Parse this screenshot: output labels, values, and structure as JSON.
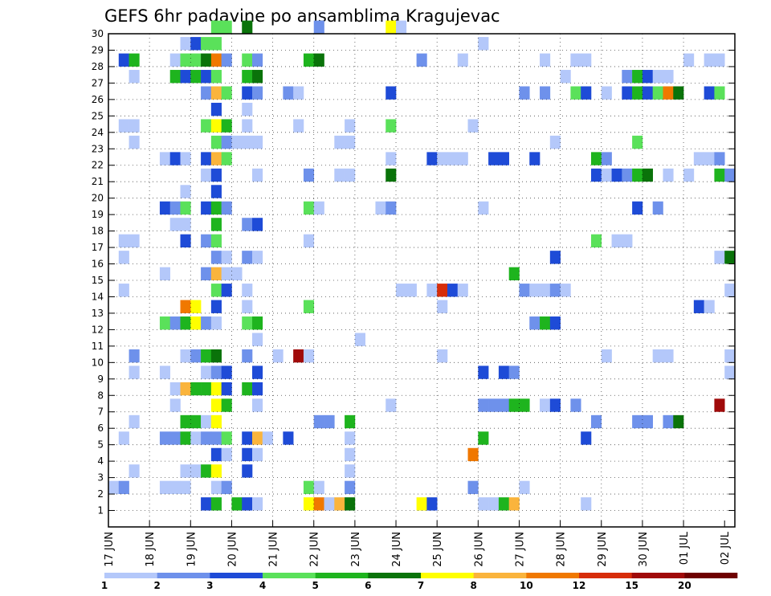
{
  "chart_data": {
    "type": "heatmap",
    "title": "GEFS 6hr padavine po ansamblima Kragujevac",
    "y_tick_labels": [
      "1",
      "2",
      "3",
      "4",
      "5",
      "6",
      "7",
      "8",
      "9",
      "10",
      "11",
      "12",
      "13",
      "14",
      "15",
      "16",
      "17",
      "18",
      "19",
      "20",
      "21",
      "22",
      "23",
      "24",
      "25",
      "26",
      "27",
      "28",
      "29",
      "30"
    ],
    "x_tick_labels": [
      "17 JUN",
      "18 JUN",
      "19 JUN",
      "20 JUN",
      "21 JUN",
      "22 JUN",
      "23 JUN",
      "24 JUN",
      "25 JUN",
      "26 JUN",
      "27 JUN",
      "28 JUN",
      "29 JUN",
      "30 JUN",
      "01 JUL",
      "02 JUL"
    ],
    "steps_per_day": 4,
    "n_steps": 61,
    "members": 30,
    "colorbar": {
      "labels": [
        "1",
        "2",
        "3",
        "4",
        "5",
        "6",
        "7",
        "8",
        "10",
        "12",
        "15",
        "20"
      ],
      "colors": [
        "#b4c8fa",
        "#6e91eb",
        "#1e4bd7",
        "#5ae15a",
        "#1eb41e",
        "#0a730a",
        "#ffff00",
        "#fab43c",
        "#f07800",
        "#d72d0a",
        "#a00a0a",
        "#6e0000"
      ]
    },
    "grid": "dotted",
    "cells": [
      [
        30,
        10,
        4
      ],
      [
        30,
        11,
        4
      ],
      [
        30,
        13,
        6
      ],
      [
        30,
        20,
        2
      ],
      [
        30,
        27,
        7
      ],
      [
        30,
        28,
        1
      ],
      [
        29,
        7,
        1
      ],
      [
        29,
        8,
        3
      ],
      [
        29,
        9,
        4
      ],
      [
        29,
        10,
        4
      ],
      [
        29,
        36,
        1
      ],
      [
        28,
        1,
        3
      ],
      [
        28,
        2,
        5
      ],
      [
        28,
        6,
        1
      ],
      [
        28,
        7,
        4
      ],
      [
        28,
        8,
        4
      ],
      [
        28,
        9,
        6
      ],
      [
        28,
        10,
        9
      ],
      [
        28,
        11,
        2
      ],
      [
        28,
        13,
        4
      ],
      [
        28,
        14,
        2
      ],
      [
        28,
        19,
        5
      ],
      [
        28,
        20,
        6
      ],
      [
        28,
        30,
        2
      ],
      [
        28,
        34,
        1
      ],
      [
        28,
        42,
        1
      ],
      [
        28,
        45,
        1
      ],
      [
        28,
        46,
        1
      ],
      [
        28,
        56,
        1
      ],
      [
        28,
        58,
        1
      ],
      [
        28,
        59,
        1
      ],
      [
        27,
        2,
        1
      ],
      [
        27,
        6,
        5
      ],
      [
        27,
        7,
        3
      ],
      [
        27,
        8,
        5
      ],
      [
        27,
        9,
        3
      ],
      [
        27,
        10,
        4
      ],
      [
        27,
        13,
        5
      ],
      [
        27,
        14,
        6
      ],
      [
        27,
        44,
        1
      ],
      [
        27,
        50,
        2
      ],
      [
        27,
        51,
        5
      ],
      [
        27,
        52,
        3
      ],
      [
        27,
        53,
        1
      ],
      [
        27,
        54,
        1
      ],
      [
        26,
        9,
        2
      ],
      [
        26,
        10,
        8
      ],
      [
        26,
        11,
        4
      ],
      [
        26,
        13,
        3
      ],
      [
        26,
        14,
        2
      ],
      [
        26,
        17,
        2
      ],
      [
        26,
        18,
        1
      ],
      [
        26,
        27,
        3
      ],
      [
        26,
        40,
        2
      ],
      [
        26,
        42,
        2
      ],
      [
        26,
        45,
        4
      ],
      [
        26,
        46,
        3
      ],
      [
        26,
        48,
        1
      ],
      [
        26,
        50,
        3
      ],
      [
        26,
        51,
        5
      ],
      [
        26,
        52,
        3
      ],
      [
        26,
        53,
        4
      ],
      [
        26,
        54,
        9
      ],
      [
        26,
        55,
        6
      ],
      [
        26,
        58,
        3
      ],
      [
        26,
        59,
        4
      ],
      [
        25,
        10,
        3
      ],
      [
        25,
        13,
        1
      ],
      [
        24,
        1,
        1
      ],
      [
        24,
        2,
        1
      ],
      [
        24,
        9,
        4
      ],
      [
        24,
        10,
        7
      ],
      [
        24,
        11,
        5
      ],
      [
        24,
        13,
        1
      ],
      [
        24,
        18,
        1
      ],
      [
        24,
        23,
        1
      ],
      [
        24,
        27,
        4
      ],
      [
        24,
        35,
        1
      ],
      [
        23,
        2,
        1
      ],
      [
        23,
        10,
        4
      ],
      [
        23,
        11,
        2
      ],
      [
        23,
        12,
        1
      ],
      [
        23,
        13,
        1
      ],
      [
        23,
        14,
        1
      ],
      [
        23,
        22,
        1
      ],
      [
        23,
        23,
        1
      ],
      [
        23,
        43,
        1
      ],
      [
        23,
        51,
        4
      ],
      [
        22,
        5,
        1
      ],
      [
        22,
        6,
        3
      ],
      [
        22,
        7,
        1
      ],
      [
        22,
        9,
        3
      ],
      [
        22,
        10,
        8
      ],
      [
        22,
        11,
        4
      ],
      [
        22,
        27,
        1
      ],
      [
        22,
        31,
        3
      ],
      [
        22,
        32,
        1
      ],
      [
        22,
        33,
        1
      ],
      [
        22,
        34,
        1
      ],
      [
        22,
        37,
        3
      ],
      [
        22,
        38,
        3
      ],
      [
        22,
        41,
        3
      ],
      [
        22,
        47,
        5
      ],
      [
        22,
        48,
        2
      ],
      [
        22,
        57,
        1
      ],
      [
        22,
        58,
        1
      ],
      [
        22,
        59,
        2
      ],
      [
        21,
        9,
        1
      ],
      [
        21,
        10,
        3
      ],
      [
        21,
        14,
        1
      ],
      [
        21,
        19,
        2
      ],
      [
        21,
        22,
        1
      ],
      [
        21,
        23,
        1
      ],
      [
        21,
        27,
        6
      ],
      [
        21,
        47,
        3
      ],
      [
        21,
        48,
        1
      ],
      [
        21,
        49,
        3
      ],
      [
        21,
        50,
        2
      ],
      [
        21,
        51,
        5
      ],
      [
        21,
        52,
        6
      ],
      [
        21,
        54,
        1
      ],
      [
        21,
        56,
        1
      ],
      [
        21,
        59,
        5
      ],
      [
        21,
        60,
        2
      ],
      [
        20,
        7,
        1
      ],
      [
        20,
        10,
        3
      ],
      [
        19,
        5,
        3
      ],
      [
        19,
        6,
        2
      ],
      [
        19,
        7,
        4
      ],
      [
        19,
        9,
        3
      ],
      [
        19,
        10,
        5
      ],
      [
        19,
        11,
        2
      ],
      [
        19,
        19,
        4
      ],
      [
        19,
        20,
        1
      ],
      [
        19,
        26,
        1
      ],
      [
        19,
        27,
        2
      ],
      [
        19,
        36,
        1
      ],
      [
        19,
        51,
        3
      ],
      [
        19,
        53,
        2
      ],
      [
        18,
        6,
        1
      ],
      [
        18,
        7,
        1
      ],
      [
        18,
        10,
        5
      ],
      [
        18,
        13,
        2
      ],
      [
        18,
        14,
        3
      ],
      [
        17,
        1,
        1
      ],
      [
        17,
        2,
        1
      ],
      [
        17,
        7,
        3
      ],
      [
        17,
        9,
        2
      ],
      [
        17,
        10,
        4
      ],
      [
        17,
        19,
        1
      ],
      [
        17,
        47,
        4
      ],
      [
        17,
        49,
        1
      ],
      [
        17,
        50,
        1
      ],
      [
        16,
        1,
        1
      ],
      [
        16,
        10,
        2
      ],
      [
        16,
        11,
        1
      ],
      [
        16,
        13,
        2
      ],
      [
        16,
        14,
        1
      ],
      [
        16,
        43,
        3
      ],
      [
        16,
        59,
        1
      ],
      [
        16,
        60,
        6
      ],
      [
        15,
        5,
        1
      ],
      [
        15,
        9,
        2
      ],
      [
        15,
        10,
        8
      ],
      [
        15,
        11,
        1
      ],
      [
        15,
        12,
        1
      ],
      [
        15,
        39,
        5
      ],
      [
        14,
        1,
        1
      ],
      [
        14,
        10,
        4
      ],
      [
        14,
        11,
        3
      ],
      [
        14,
        13,
        1
      ],
      [
        14,
        28,
        1
      ],
      [
        14,
        29,
        1
      ],
      [
        14,
        31,
        1
      ],
      [
        14,
        32,
        10
      ],
      [
        14,
        33,
        3
      ],
      [
        14,
        34,
        1
      ],
      [
        14,
        40,
        2
      ],
      [
        14,
        41,
        1
      ],
      [
        14,
        42,
        1
      ],
      [
        14,
        43,
        2
      ],
      [
        14,
        44,
        1
      ],
      [
        14,
        60,
        1
      ],
      [
        13,
        7,
        9
      ],
      [
        13,
        8,
        7
      ],
      [
        13,
        10,
        3
      ],
      [
        13,
        13,
        1
      ],
      [
        13,
        19,
        4
      ],
      [
        13,
        32,
        1
      ],
      [
        13,
        57,
        3
      ],
      [
        13,
        58,
        1
      ],
      [
        12,
        5,
        4
      ],
      [
        12,
        6,
        2
      ],
      [
        12,
        7,
        5
      ],
      [
        12,
        8,
        7
      ],
      [
        12,
        9,
        2
      ],
      [
        12,
        10,
        1
      ],
      [
        12,
        13,
        4
      ],
      [
        12,
        14,
        5
      ],
      [
        12,
        41,
        2
      ],
      [
        12,
        42,
        5
      ],
      [
        12,
        43,
        3
      ],
      [
        11,
        14,
        1
      ],
      [
        11,
        24,
        1
      ],
      [
        10,
        2,
        2
      ],
      [
        10,
        7,
        1
      ],
      [
        10,
        8,
        2
      ],
      [
        10,
        9,
        5
      ],
      [
        10,
        10,
        6
      ],
      [
        10,
        13,
        2
      ],
      [
        10,
        16,
        1
      ],
      [
        10,
        18,
        11
      ],
      [
        10,
        19,
        1
      ],
      [
        10,
        32,
        1
      ],
      [
        10,
        48,
        1
      ],
      [
        10,
        53,
        1
      ],
      [
        10,
        54,
        1
      ],
      [
        10,
        60,
        1
      ],
      [
        9,
        2,
        1
      ],
      [
        9,
        5,
        1
      ],
      [
        9,
        9,
        1
      ],
      [
        9,
        10,
        2
      ],
      [
        9,
        11,
        3
      ],
      [
        9,
        14,
        3
      ],
      [
        9,
        36,
        3
      ],
      [
        9,
        38,
        3
      ],
      [
        9,
        39,
        2
      ],
      [
        9,
        60,
        1
      ],
      [
        8,
        6,
        1
      ],
      [
        8,
        7,
        8
      ],
      [
        8,
        8,
        5
      ],
      [
        8,
        9,
        5
      ],
      [
        8,
        10,
        7
      ],
      [
        8,
        11,
        3
      ],
      [
        8,
        13,
        5
      ],
      [
        8,
        14,
        3
      ],
      [
        7,
        6,
        1
      ],
      [
        7,
        10,
        7
      ],
      [
        7,
        11,
        5
      ],
      [
        7,
        14,
        1
      ],
      [
        7,
        27,
        1
      ],
      [
        7,
        36,
        2
      ],
      [
        7,
        37,
        2
      ],
      [
        7,
        38,
        2
      ],
      [
        7,
        39,
        5
      ],
      [
        7,
        40,
        5
      ],
      [
        7,
        42,
        1
      ],
      [
        7,
        43,
        3
      ],
      [
        7,
        45,
        2
      ],
      [
        7,
        59,
        11
      ],
      [
        6,
        2,
        1
      ],
      [
        6,
        7,
        5
      ],
      [
        6,
        8,
        5
      ],
      [
        6,
        9,
        1
      ],
      [
        6,
        10,
        7
      ],
      [
        6,
        20,
        2
      ],
      [
        6,
        21,
        2
      ],
      [
        6,
        23,
        5
      ],
      [
        6,
        47,
        2
      ],
      [
        6,
        51,
        2
      ],
      [
        6,
        52,
        2
      ],
      [
        6,
        54,
        2
      ],
      [
        6,
        55,
        6
      ],
      [
        5,
        1,
        1
      ],
      [
        5,
        5,
        2
      ],
      [
        5,
        6,
        2
      ],
      [
        5,
        7,
        5
      ],
      [
        5,
        8,
        1
      ],
      [
        5,
        9,
        2
      ],
      [
        5,
        10,
        2
      ],
      [
        5,
        11,
        4
      ],
      [
        5,
        13,
        3
      ],
      [
        5,
        14,
        8
      ],
      [
        5,
        15,
        1
      ],
      [
        5,
        17,
        3
      ],
      [
        5,
        23,
        1
      ],
      [
        5,
        36,
        5
      ],
      [
        5,
        46,
        3
      ],
      [
        4,
        10,
        3
      ],
      [
        4,
        11,
        1
      ],
      [
        4,
        13,
        3
      ],
      [
        4,
        14,
        1
      ],
      [
        4,
        23,
        1
      ],
      [
        4,
        35,
        9
      ],
      [
        3,
        2,
        1
      ],
      [
        3,
        7,
        1
      ],
      [
        3,
        8,
        1
      ],
      [
        3,
        9,
        5
      ],
      [
        3,
        10,
        7
      ],
      [
        3,
        13,
        3
      ],
      [
        3,
        23,
        1
      ],
      [
        2,
        0,
        1
      ],
      [
        2,
        1,
        2
      ],
      [
        2,
        5,
        1
      ],
      [
        2,
        6,
        1
      ],
      [
        2,
        7,
        1
      ],
      [
        2,
        10,
        1
      ],
      [
        2,
        11,
        2
      ],
      [
        2,
        19,
        4
      ],
      [
        2,
        20,
        1
      ],
      [
        2,
        23,
        2
      ],
      [
        2,
        35,
        2
      ],
      [
        2,
        40,
        1
      ],
      [
        1,
        9,
        3
      ],
      [
        1,
        10,
        5
      ],
      [
        1,
        12,
        5
      ],
      [
        1,
        13,
        3
      ],
      [
        1,
        14,
        1
      ],
      [
        1,
        19,
        7
      ],
      [
        1,
        20,
        9
      ],
      [
        1,
        21,
        1
      ],
      [
        1,
        22,
        8
      ],
      [
        1,
        23,
        6
      ],
      [
        1,
        30,
        7
      ],
      [
        1,
        31,
        3
      ],
      [
        1,
        36,
        1
      ],
      [
        1,
        37,
        1
      ],
      [
        1,
        38,
        5
      ],
      [
        1,
        39,
        8
      ],
      [
        1,
        46,
        1
      ]
    ]
  }
}
